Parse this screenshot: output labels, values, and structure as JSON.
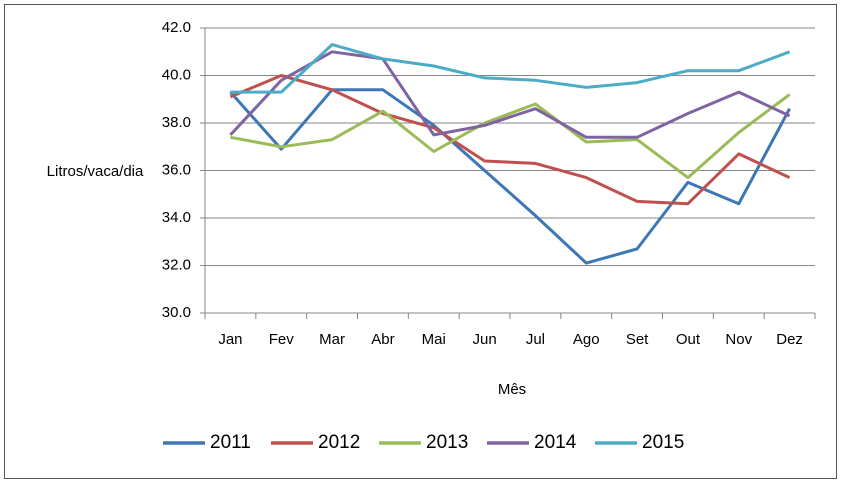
{
  "chart_data": {
    "type": "line",
    "categories": [
      "Jan",
      "Fev",
      "Mar",
      "Abr",
      "Mai",
      "Jun",
      "Jul",
      "Ago",
      "Set",
      "Out",
      "Nov",
      "Dez"
    ],
    "series": [
      {
        "name": "2011",
        "color": "#3d77b6",
        "values": [
          39.3,
          36.9,
          39.4,
          39.4,
          37.9,
          36.0,
          34.1,
          32.1,
          32.7,
          35.5,
          34.6,
          38.6
        ]
      },
      {
        "name": "2012",
        "color": "#c0504d",
        "values": [
          39.1,
          40.0,
          39.4,
          38.4,
          37.8,
          36.4,
          36.3,
          35.7,
          34.7,
          34.6,
          36.7,
          35.7
        ]
      },
      {
        "name": "2013",
        "color": "#9bbb59",
        "values": [
          37.4,
          37.0,
          37.3,
          38.5,
          36.8,
          38.0,
          38.8,
          37.2,
          37.3,
          35.7,
          37.6,
          39.2
        ]
      },
      {
        "name": "2014",
        "color": "#8064a2",
        "values": [
          37.5,
          39.8,
          41.0,
          40.7,
          37.5,
          37.9,
          38.6,
          37.4,
          37.4,
          38.4,
          39.3,
          38.3
        ]
      },
      {
        "name": "2015",
        "color": "#4bacc6",
        "values": [
          39.3,
          39.3,
          41.3,
          40.7,
          40.4,
          39.9,
          39.8,
          39.5,
          39.7,
          40.2,
          40.2,
          41.0
        ]
      }
    ],
    "y_label": "Litros/vaca/dia",
    "x_label": "Mês",
    "ylim": [
      30,
      42
    ],
    "yticks": [
      {
        "value": 30,
        "label": "30.0"
      },
      {
        "value": 32,
        "label": "32.0"
      },
      {
        "value": 34,
        "label": "34.0"
      },
      {
        "value": 36,
        "label": "36.0"
      },
      {
        "value": 38,
        "label": "38.0"
      },
      {
        "value": 40,
        "label": "40.0"
      },
      {
        "value": 42,
        "label": "42.0"
      }
    ],
    "grid": true,
    "legend": "bottom"
  }
}
